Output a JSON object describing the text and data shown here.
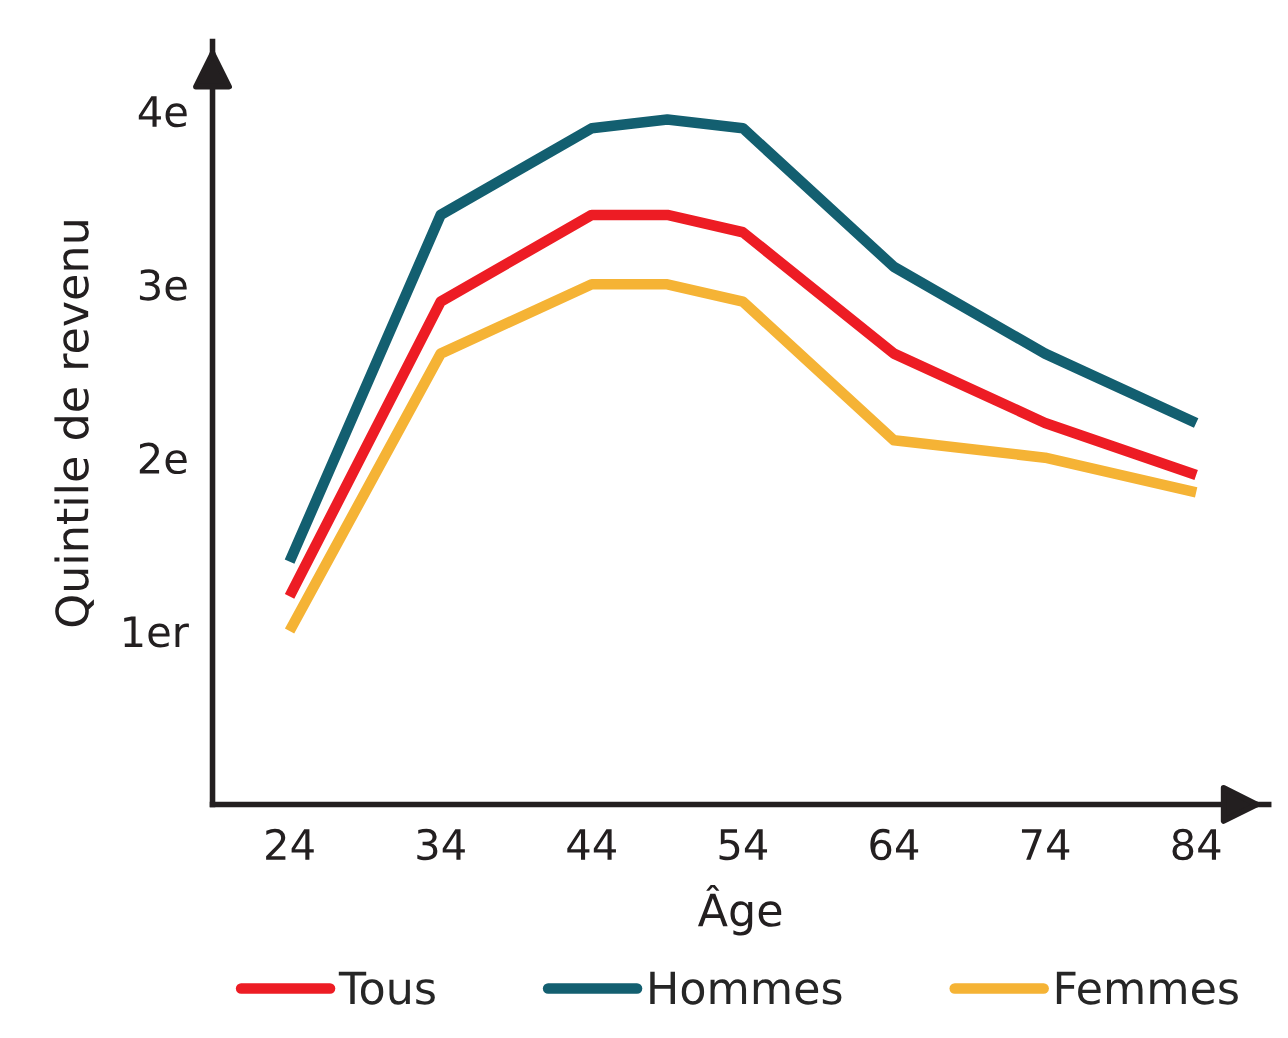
{
  "chart_data": {
    "type": "line",
    "xlabel": "Âge",
    "ylabel": "Quintile de revenu",
    "x": [
      24,
      34,
      44,
      49,
      54,
      64,
      74,
      84
    ],
    "xlim": [
      18.9,
      88.8
    ],
    "xticks": [
      24,
      34,
      44,
      54,
      64,
      74,
      84
    ],
    "ylim": [
      0,
      4.4
    ],
    "yticks": [
      {
        "value": 1,
        "label": "1er"
      },
      {
        "value": 2,
        "label": "2e"
      },
      {
        "value": 3,
        "label": "3e"
      },
      {
        "value": 4,
        "label": "4e"
      }
    ],
    "grid": false,
    "legend": "bottom",
    "marker": "none",
    "line_style": "solid",
    "series": [
      {
        "name": "Tous",
        "color": "#ed1c24",
        "values": [
          1.2,
          2.9,
          3.4,
          3.4,
          3.3,
          2.6,
          2.2,
          1.9
        ]
      },
      {
        "name": "Hommes",
        "color": "#135f70",
        "values": [
          1.4,
          3.4,
          3.9,
          3.95,
          3.9,
          3.1,
          2.6,
          2.2
        ]
      },
      {
        "name": "Femmes",
        "color": "#f5b335",
        "values": [
          1.0,
          2.6,
          3.0,
          3.0,
          2.9,
          2.1,
          2.0,
          1.8
        ]
      }
    ]
  }
}
